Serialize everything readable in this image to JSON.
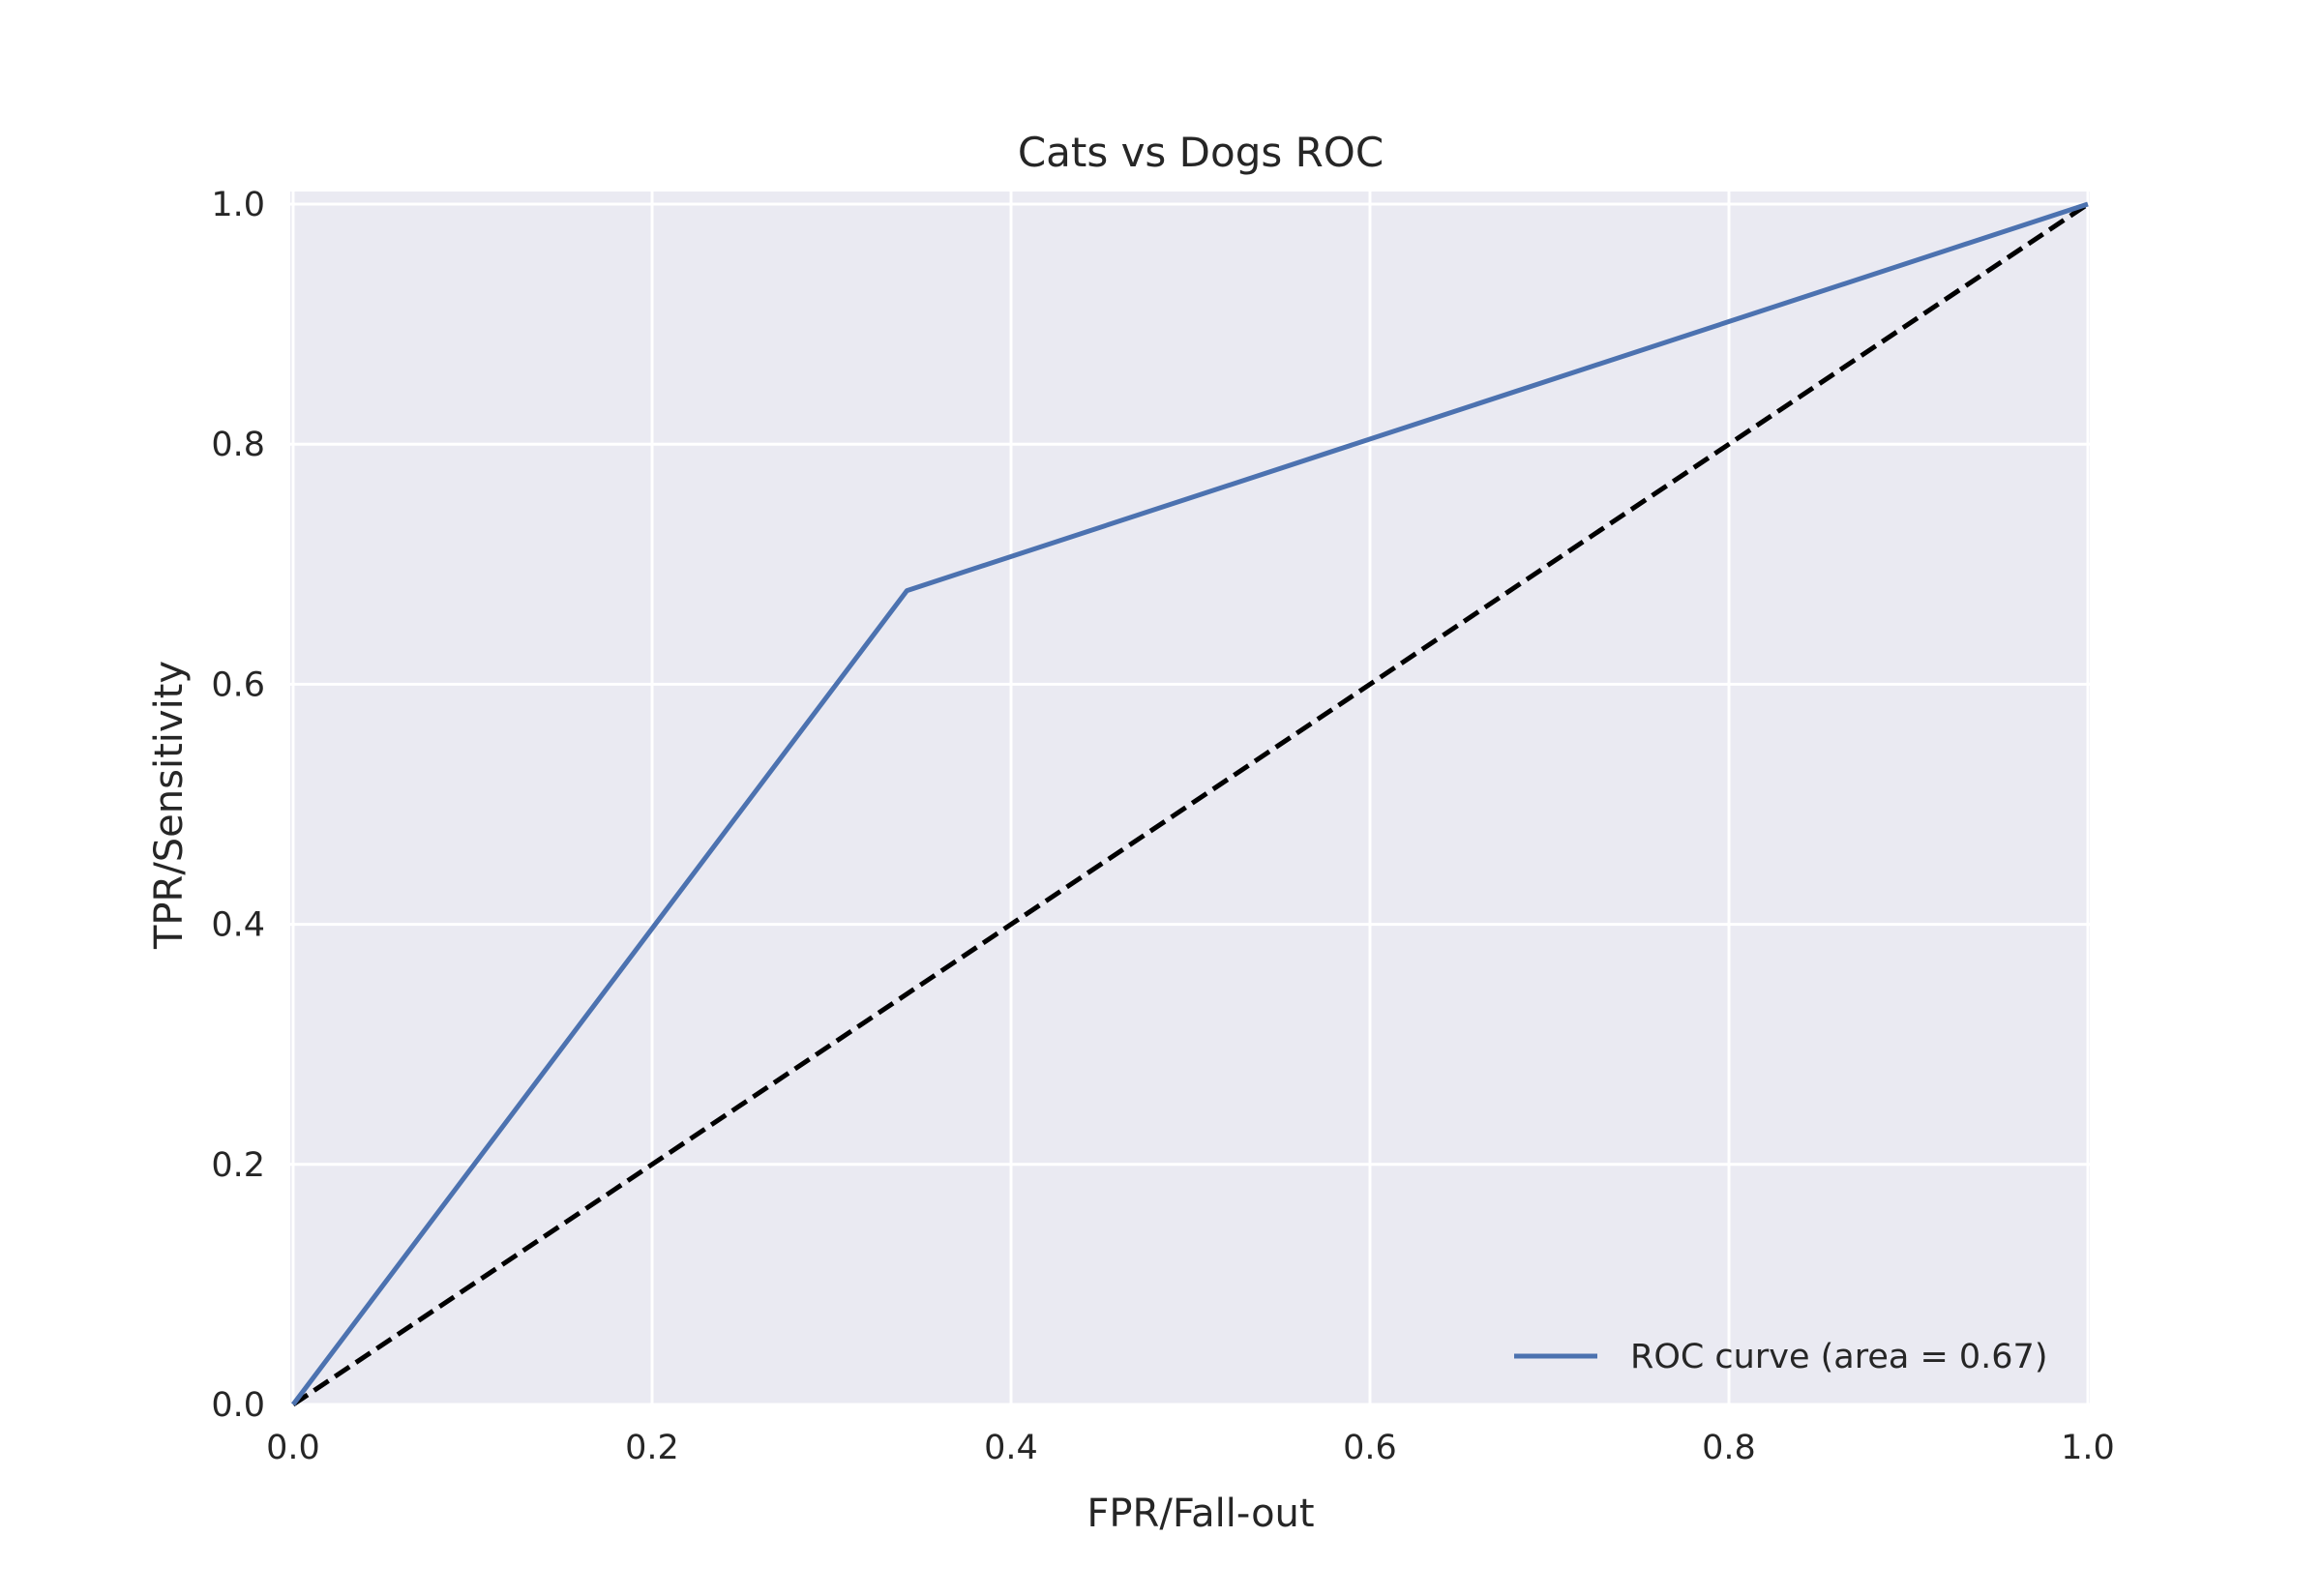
{
  "chart_data": {
    "type": "line",
    "title": "Cats vs Dogs ROC",
    "xlabel": "FPR/Fall-out",
    "ylabel": "TPR/Sensitivity",
    "xlim": [
      0.0,
      1.0
    ],
    "ylim": [
      0.0,
      1.0
    ],
    "xticks": [
      "0.0",
      "0.2",
      "0.4",
      "0.6",
      "0.8",
      "1.0"
    ],
    "yticks": [
      "0.0",
      "0.2",
      "0.4",
      "0.6",
      "0.8",
      "1.0"
    ],
    "grid": true,
    "legend_position": "lower-right",
    "series": [
      {
        "name": "ROC curve (area = 0.67)",
        "color": "#4c72b0",
        "style": "solid",
        "x": [
          0.0,
          0.342,
          1.0
        ],
        "y": [
          0.0,
          0.678,
          1.0
        ]
      },
      {
        "color": "#000000",
        "style": "dashed",
        "x": [
          0.0,
          1.0
        ],
        "y": [
          0.0,
          1.0
        ]
      }
    ],
    "colors": {
      "plot_background": "#eaeaf2",
      "grid": "#ffffff",
      "text": "#262626"
    }
  }
}
